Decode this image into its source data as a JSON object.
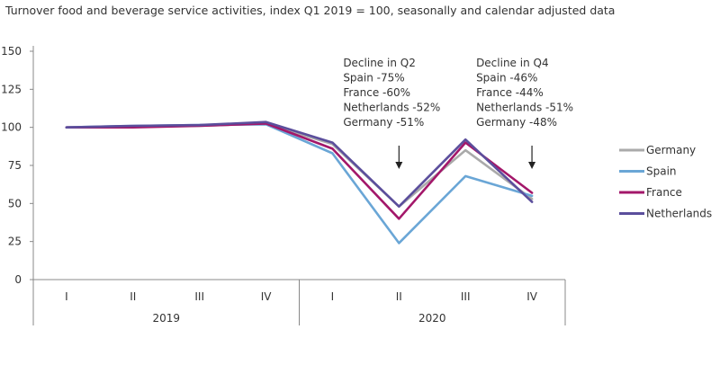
{
  "chart_data": {
    "type": "line",
    "title": "Turnover food and beverage service activities, index Q1 2019 = 100, seasonally and calendar adjusted data",
    "xlabel": "",
    "ylabel": "",
    "ylim": [
      0,
      150
    ],
    "yticks": [
      0,
      25,
      50,
      75,
      100,
      125,
      150
    ],
    "categories": [
      "I",
      "II",
      "III",
      "IV",
      "I",
      "II",
      "III",
      "IV"
    ],
    "groups": [
      {
        "label": "2019",
        "count": 4
      },
      {
        "label": "2020",
        "count": 4
      }
    ],
    "grid": false,
    "legend_position": "right",
    "series": [
      {
        "name": "Germany",
        "color": "#aaaaaa",
        "values": [
          100,
          100.5,
          101,
          102.5,
          89,
          48,
          85,
          53
        ]
      },
      {
        "name": "Spain",
        "color": "#6aa6d6",
        "values": [
          100,
          101,
          101.5,
          102,
          83,
          24,
          68,
          55
        ]
      },
      {
        "name": "France",
        "color": "#a3176a",
        "values": [
          100,
          100,
          101,
          102.5,
          86,
          40,
          90,
          57
        ]
      },
      {
        "name": "Netherlands",
        "color": "#5b4e9c",
        "values": [
          100,
          101,
          101.5,
          103.5,
          90,
          48,
          92,
          51
        ]
      }
    ],
    "annotations": [
      {
        "category_index": 5,
        "lines": [
          "Decline in Q2",
          "Spain -75%",
          "France -60%",
          "Netherlands -52%",
          "Germany -51%"
        ]
      },
      {
        "category_index": 7,
        "lines": [
          "Decline in Q4",
          "Spain -46%",
          "France -44%",
          "Netherlands -51%",
          "Germany -48%"
        ]
      }
    ]
  }
}
